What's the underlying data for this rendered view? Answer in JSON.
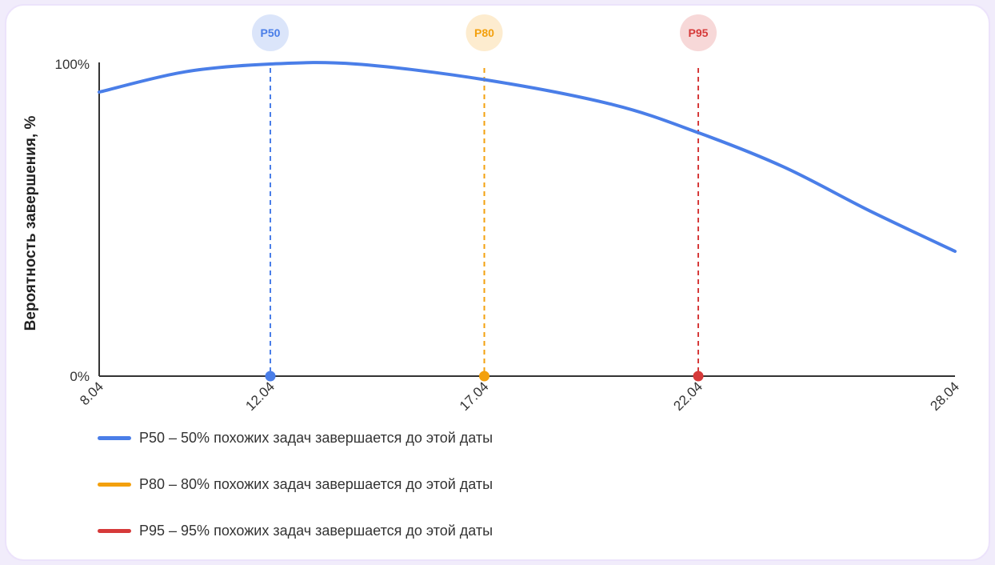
{
  "colors": {
    "p50": "#4a7ee8",
    "p80": "#f3a00d",
    "p95": "#d63a3a",
    "axis": "#333333",
    "text": "#333333"
  },
  "chart_data": {
    "type": "line",
    "ylabel": "Вероятность завершения, %",
    "xlabel": "",
    "ylim": [
      0,
      100
    ],
    "y_tick_labels": [
      "100%",
      "0%"
    ],
    "x_ticks": [
      "8.04",
      "12.04",
      "17.04",
      "22.04",
      "28.04"
    ],
    "series": [
      {
        "x": [
          8,
          10,
          12,
          14,
          17,
          20,
          22,
          24,
          26,
          28
        ],
        "values": [
          91,
          97.5,
          100,
          100,
          95,
          87,
          78,
          67,
          53,
          40
        ]
      }
    ],
    "markers": [
      {
        "label": "P50",
        "date": "12.04",
        "x": 12,
        "color_key": "p50"
      },
      {
        "label": "P80",
        "date": "17.04",
        "x": 17,
        "color_key": "p80"
      },
      {
        "label": "P95",
        "date": "22.04",
        "x": 22,
        "color_key": "p95"
      }
    ],
    "grid": false
  },
  "legend": [
    {
      "label": "P50 – 50% похожих задач завершается до этой даты",
      "color_key": "p50"
    },
    {
      "label": "P80 – 80% похожих задач завершается до этой даты",
      "color_key": "p80"
    },
    {
      "label": "P95 – 95% похожих задач завершается до этой даты",
      "color_key": "p95"
    }
  ]
}
